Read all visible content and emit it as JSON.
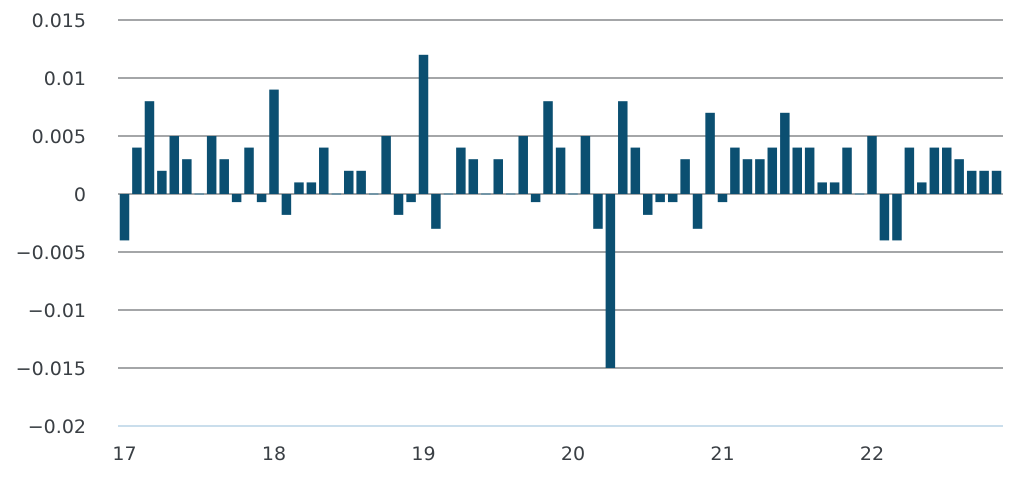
{
  "chart_data": {
    "type": "bar",
    "title": "",
    "xlabel": "",
    "ylabel": "",
    "ylim": [
      -0.02,
      0.015
    ],
    "xlim": [
      17,
      22.88
    ],
    "yticks": [
      0.015,
      0.01,
      0.005,
      0,
      -0.005,
      -0.01,
      -0.015,
      -0.02
    ],
    "ytick_labels": [
      "0.015",
      "0.01",
      "0.005",
      "0",
      "−0.005",
      "−0.01",
      "−0.015",
      "−0.02"
    ],
    "xticks": [
      17,
      18,
      19,
      20,
      21,
      22
    ],
    "xtick_labels": [
      "17",
      "18",
      "19",
      "20",
      "21",
      "22"
    ],
    "grid": true,
    "bar_color": "#0b4f71",
    "grid_color": "#6d7073",
    "baseline_color": "#b9d4e6",
    "x": [
      17,
      17.083,
      17.167,
      17.25,
      17.333,
      17.417,
      17.5,
      17.583,
      17.667,
      17.75,
      17.833,
      17.917,
      18,
      18.083,
      18.167,
      18.25,
      18.333,
      18.417,
      18.5,
      18.583,
      18.667,
      18.75,
      18.833,
      18.917,
      19,
      19.083,
      19.167,
      19.25,
      19.333,
      19.417,
      19.5,
      19.583,
      19.667,
      19.75,
      19.833,
      19.917,
      20,
      20.083,
      20.167,
      20.25,
      20.333,
      20.417,
      20.5,
      20.583,
      20.667,
      20.75,
      20.833,
      20.917,
      21,
      21.083,
      21.167,
      21.25,
      21.333,
      21.417,
      21.5,
      21.583,
      21.667,
      21.75,
      21.833,
      21.917,
      22,
      22.083,
      22.167,
      22.25,
      22.333,
      22.417,
      22.5,
      22.583,
      22.667,
      22.75,
      22.833
    ],
    "values": [
      -0.004,
      0.004,
      0.008,
      0.002,
      0.005,
      0.003,
      0.0,
      0.005,
      0.003,
      -0.0007,
      0.004,
      -0.0007,
      0.009,
      -0.0018,
      0.001,
      0.001,
      0.004,
      0.0,
      0.002,
      0.002,
      0.0,
      0.005,
      -0.0018,
      -0.0007,
      0.012,
      -0.003,
      0.0,
      0.004,
      0.003,
      0.0,
      0.003,
      0.0,
      0.005,
      -0.0007,
      0.008,
      0.004,
      0.0,
      0.005,
      -0.003,
      -0.015,
      0.008,
      0.004,
      -0.0018,
      -0.0007,
      -0.0007,
      0.003,
      -0.003,
      0.007,
      -0.0007,
      0.004,
      0.003,
      0.003,
      0.004,
      0.007,
      0.004,
      0.004,
      0.001,
      0.001,
      0.004,
      0.0,
      0.005,
      -0.004,
      -0.004,
      0.004,
      0.001,
      0.004,
      0.004,
      0.003,
      0.002,
      0.002,
      0.002
    ]
  }
}
